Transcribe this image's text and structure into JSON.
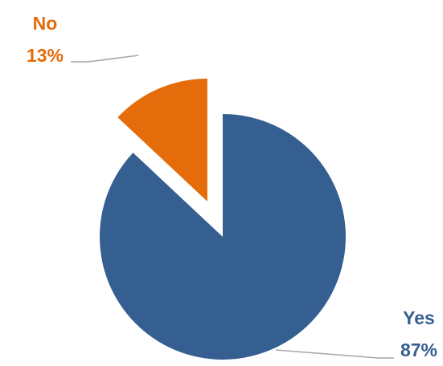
{
  "chart_data": {
    "type": "pie",
    "title": "",
    "slices": [
      {
        "label": "Yes",
        "value": 87,
        "value_label": "87%",
        "color": "#355F91",
        "exploded": false
      },
      {
        "label": "No",
        "value": 13,
        "value_label": "13%",
        "color": "#E46C0A",
        "exploded": true
      }
    ],
    "legend": "none",
    "data_labels": "outside-with-leader-lines"
  }
}
